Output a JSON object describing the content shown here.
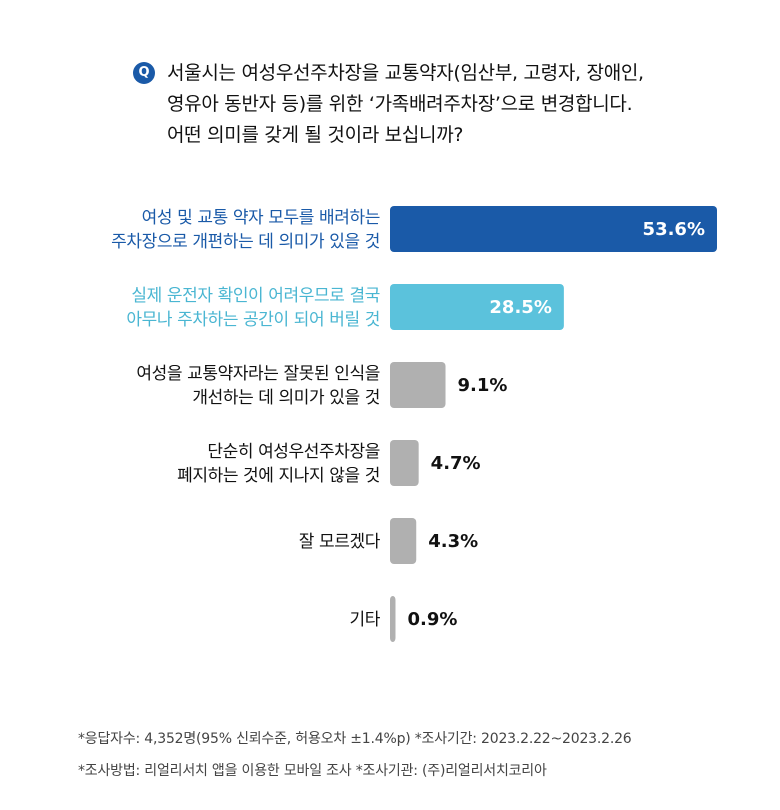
{
  "question": {
    "badge": "Q",
    "lines": [
      "서울시는 여성우선주차장을 교통약자(임산부, 고령자, 장애인,",
      "영유아 동반자 등)를 위한 ‘가족배려주차장’으로 변경합니다.",
      "어떤 의미를 갖게 될 것이라 보십니까?"
    ]
  },
  "chart_data": {
    "type": "bar",
    "orientation": "horizontal",
    "unit": "%",
    "categories": [
      [
        "여성 및 교통 약자 모두를 배려하는",
        "주차장으로 개편하는 데 의미가 있을 것"
      ],
      [
        "실제 운전자 확인이 어려우므로 결국",
        "아무나 주차하는 공간이 되어 버릴 것"
      ],
      [
        "여성을 교통약자라는 잘못된 인식을",
        "개선하는 데 의미가 있을 것"
      ],
      [
        "단순히 여성우선주차장을",
        "폐지하는 것에 지나지 않을 것"
      ],
      [
        "잘 모르겠다"
      ],
      [
        "기타"
      ]
    ],
    "values": [
      53.6,
      28.5,
      9.1,
      4.7,
      4.3,
      0.9
    ],
    "value_labels": [
      "53.6%",
      "28.5%",
      "9.1%",
      "4.7%",
      "4.3%",
      "0.9%"
    ],
    "colors": [
      "#1a5aa8",
      "#5bc2dc",
      "#b0b0b0",
      "#b0b0b0",
      "#b0b0b0",
      "#b0b0b0"
    ],
    "label_colors": [
      "#1a5aa8",
      "#4ab6d2",
      "#111111",
      "#111111",
      "#111111",
      "#111111"
    ],
    "value_inside": [
      true,
      true,
      false,
      false,
      false,
      false
    ]
  },
  "footnotes": [
    "*응답자수: 4,352명(95% 신뢰수준, 허용오차 ±1.4%p)  *조사기간: 2023.2.22~2023.2.26",
    "*조사방법: 리얼리서치 앱을 이용한 모바일 조사  *조사기관: (주)리얼리서치코리아"
  ]
}
